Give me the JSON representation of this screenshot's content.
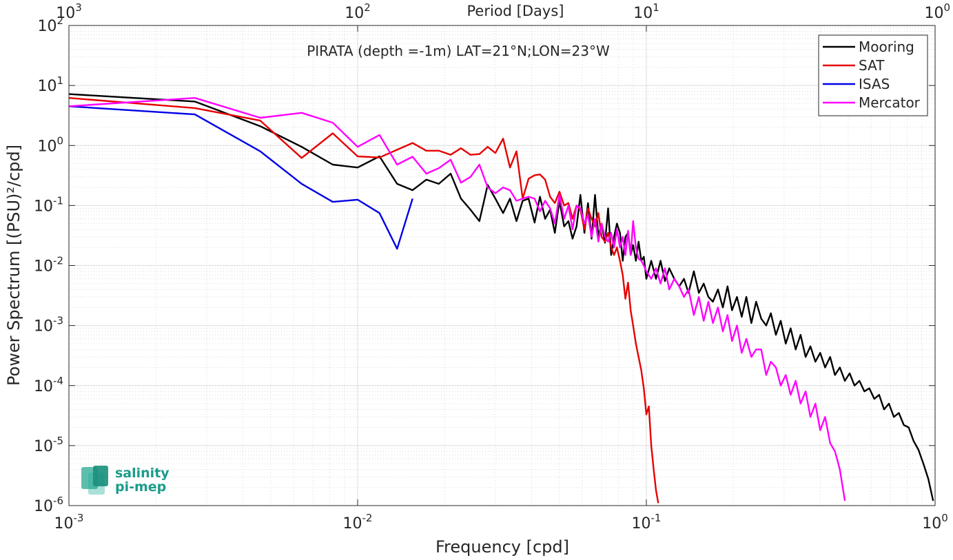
{
  "chart_data": {
    "type": "line",
    "title": "PIRATA (depth =-1m) LAT=21°N;LON=23°W",
    "xlabel": "Frequency [cpd]",
    "ylabel": "Power Spectrum [(PSU)²/cpd]",
    "top_axis_label": "Period [Days]",
    "x_scale": "log",
    "y_scale": "log",
    "xlim": [
      0.001,
      1
    ],
    "ylim": [
      1e-06,
      100
    ],
    "grid": true,
    "legend_position": "top-right",
    "x_ticks": [
      {
        "value": 0.001,
        "base": "10",
        "exp": "-3"
      },
      {
        "value": 0.01,
        "base": "10",
        "exp": "-2"
      },
      {
        "value": 0.1,
        "base": "10",
        "exp": "-1"
      },
      {
        "value": 1,
        "base": "10",
        "exp": "0"
      }
    ],
    "top_ticks": [
      {
        "value": 0.001,
        "base": "10",
        "exp": "3"
      },
      {
        "value": 0.01,
        "base": "10",
        "exp": "2"
      },
      {
        "value": 0.1,
        "base": "10",
        "exp": "1"
      },
      {
        "value": 1,
        "base": "10",
        "exp": "0"
      }
    ],
    "y_ticks": [
      {
        "value": 1e-06,
        "base": "10",
        "exp": "-6"
      },
      {
        "value": 1e-05,
        "base": "10",
        "exp": "-5"
      },
      {
        "value": 0.0001,
        "base": "10",
        "exp": "-4"
      },
      {
        "value": 0.001,
        "base": "10",
        "exp": "-3"
      },
      {
        "value": 0.01,
        "base": "10",
        "exp": "-2"
      },
      {
        "value": 0.1,
        "base": "10",
        "exp": "-1"
      },
      {
        "value": 1,
        "base": "10",
        "exp": "0"
      },
      {
        "value": 10,
        "base": "10",
        "exp": "1"
      },
      {
        "value": 100,
        "base": "10",
        "exp": "2"
      }
    ],
    "series": [
      {
        "name": "Mooring",
        "color": "#000000",
        "x": [
          0.001,
          0.00273,
          0.0046,
          0.0064,
          0.0082,
          0.01,
          0.0119,
          0.0137,
          0.0155,
          0.0173,
          0.0191,
          0.021,
          0.0228,
          0.0246,
          0.0264,
          0.0282,
          0.03,
          0.0319,
          0.0337,
          0.0355,
          0.0373,
          0.0391,
          0.041,
          0.0428,
          0.0446,
          0.0464,
          0.0482,
          0.05,
          0.0519,
          0.0537,
          0.0555,
          0.0573,
          0.0591,
          0.061,
          0.0628,
          0.0646,
          0.0664,
          0.0682,
          0.07,
          0.0719,
          0.0737,
          0.0755,
          0.0773,
          0.0791,
          0.081,
          0.0828,
          0.0846,
          0.0864,
          0.0882,
          0.09,
          0.092,
          0.094,
          0.096,
          0.098,
          0.1,
          0.104,
          0.108,
          0.112,
          0.116,
          0.12,
          0.125,
          0.13,
          0.135,
          0.14,
          0.146,
          0.152,
          0.158,
          0.164,
          0.17,
          0.177,
          0.184,
          0.191,
          0.198,
          0.206,
          0.214,
          0.222,
          0.231,
          0.24,
          0.25,
          0.26,
          0.27,
          0.281,
          0.292,
          0.304,
          0.316,
          0.329,
          0.342,
          0.356,
          0.37,
          0.385,
          0.4,
          0.416,
          0.433,
          0.45,
          0.468,
          0.487,
          0.506,
          0.526,
          0.547,
          0.569,
          0.592,
          0.616,
          0.64,
          0.666,
          0.692,
          0.72,
          0.749,
          0.779,
          0.81,
          0.842,
          0.876,
          0.911,
          0.947,
          0.985
        ],
        "y": [
          7.2,
          5.4,
          2.1,
          0.95,
          0.48,
          0.43,
          0.66,
          0.23,
          0.18,
          0.27,
          0.23,
          0.34,
          0.13,
          0.085,
          0.055,
          0.22,
          0.13,
          0.075,
          0.13,
          0.055,
          0.12,
          0.13,
          0.052,
          0.14,
          0.06,
          0.085,
          0.035,
          0.12,
          0.045,
          0.055,
          0.028,
          0.045,
          0.15,
          0.035,
          0.11,
          0.028,
          0.15,
          0.03,
          0.05,
          0.024,
          0.09,
          0.015,
          0.03,
          0.05,
          0.035,
          0.012,
          0.03,
          0.035,
          0.015,
          0.022,
          0.012,
          0.025,
          0.012,
          0.014,
          0.006,
          0.012,
          0.006,
          0.012,
          0.0055,
          0.009,
          0.006,
          0.0045,
          0.006,
          0.0035,
          0.008,
          0.0035,
          0.005,
          0.003,
          0.0025,
          0.004,
          0.002,
          0.0045,
          0.0018,
          0.003,
          0.0014,
          0.003,
          0.0011,
          0.0025,
          0.0013,
          0.001,
          0.0016,
          0.0007,
          0.0012,
          0.0005,
          0.0009,
          0.0004,
          0.0007,
          0.0003,
          0.00045,
          0.00025,
          0.00035,
          0.0002,
          0.0003,
          0.00015,
          0.0002,
          0.00012,
          0.00016,
          0.0001,
          0.00012,
          8e-05,
          9e-05,
          6e-05,
          7e-05,
          4e-05,
          5e-05,
          3e-05,
          3.5e-05,
          2.2e-05,
          2e-05,
          1.2e-05,
          8.5e-06,
          5e-06,
          2.8e-06,
          1.2e-06
        ]
      },
      {
        "name": "SAT",
        "color": "#e60000",
        "x": [
          0.001,
          0.00273,
          0.0046,
          0.0064,
          0.0082,
          0.01,
          0.0119,
          0.0137,
          0.0155,
          0.0173,
          0.0191,
          0.021,
          0.0228,
          0.0246,
          0.0264,
          0.0282,
          0.03,
          0.0319,
          0.0337,
          0.0355,
          0.0373,
          0.0391,
          0.041,
          0.0428,
          0.0446,
          0.0464,
          0.0482,
          0.05,
          0.0519,
          0.0537,
          0.0555,
          0.0573,
          0.0591,
          0.061,
          0.0628,
          0.0646,
          0.0664,
          0.0682,
          0.07,
          0.0719,
          0.0737,
          0.0755,
          0.0773,
          0.0791,
          0.081,
          0.0828,
          0.0846,
          0.0864,
          0.0882,
          0.09,
          0.092,
          0.094,
          0.096,
          0.098,
          0.1,
          0.102,
          0.104,
          0.106,
          0.108,
          0.11
        ],
        "y": [
          6.2,
          4.2,
          2.6,
          0.62,
          1.6,
          0.66,
          0.63,
          0.85,
          1.1,
          0.82,
          0.82,
          0.7,
          0.9,
          0.7,
          0.72,
          0.95,
          0.75,
          1.3,
          0.43,
          0.8,
          0.13,
          0.28,
          0.32,
          0.33,
          0.27,
          0.14,
          0.11,
          0.17,
          0.1,
          0.11,
          0.06,
          0.1,
          0.085,
          0.04,
          0.09,
          0.06,
          0.045,
          0.075,
          0.03,
          0.025,
          0.035,
          0.02,
          0.015,
          0.02,
          0.012,
          0.007,
          0.0028,
          0.0052,
          0.0018,
          0.001,
          0.0005,
          0.0003,
          0.00018,
          9e-05,
          3.3e-05,
          4.5e-05,
          1e-05,
          4e-06,
          1.8e-06,
          1.1e-06
        ]
      },
      {
        "name": "ISAS",
        "color": "#0000e6",
        "x": [
          0.001,
          0.00273,
          0.0046,
          0.0064,
          0.0082,
          0.01,
          0.0119,
          0.0137,
          0.0155
        ],
        "y": [
          4.5,
          3.3,
          0.8,
          0.23,
          0.115,
          0.125,
          0.075,
          0.019,
          0.13
        ]
      },
      {
        "name": "Mercator",
        "color": "#ff00ff",
        "x": [
          0.001,
          0.00273,
          0.0046,
          0.0064,
          0.0082,
          0.01,
          0.0119,
          0.0137,
          0.0155,
          0.0173,
          0.0191,
          0.021,
          0.0228,
          0.0246,
          0.0264,
          0.0282,
          0.03,
          0.0319,
          0.0337,
          0.0355,
          0.0373,
          0.0391,
          0.041,
          0.0428,
          0.0446,
          0.0464,
          0.0482,
          0.05,
          0.0519,
          0.0537,
          0.0555,
          0.0573,
          0.0591,
          0.061,
          0.0628,
          0.0646,
          0.0664,
          0.0682,
          0.07,
          0.0719,
          0.0737,
          0.0755,
          0.0773,
          0.0791,
          0.081,
          0.0828,
          0.0846,
          0.0864,
          0.0882,
          0.09,
          0.092,
          0.094,
          0.096,
          0.098,
          0.1,
          0.104,
          0.108,
          0.112,
          0.116,
          0.12,
          0.125,
          0.13,
          0.135,
          0.14,
          0.146,
          0.152,
          0.158,
          0.164,
          0.17,
          0.177,
          0.184,
          0.191,
          0.198,
          0.206,
          0.214,
          0.222,
          0.231,
          0.24,
          0.25,
          0.26,
          0.27,
          0.281,
          0.292,
          0.304,
          0.316,
          0.329,
          0.342,
          0.356,
          0.37,
          0.385,
          0.4,
          0.416,
          0.433,
          0.45,
          0.468,
          0.487
        ],
        "y": [
          4.5,
          6.2,
          2.9,
          3.5,
          2.4,
          0.95,
          1.5,
          0.48,
          0.65,
          0.34,
          0.42,
          0.58,
          0.24,
          0.3,
          0.48,
          0.2,
          0.16,
          0.2,
          0.18,
          0.12,
          0.13,
          0.14,
          0.13,
          0.08,
          0.12,
          0.09,
          0.05,
          0.15,
          0.06,
          0.1,
          0.04,
          0.1,
          0.09,
          0.05,
          0.07,
          0.03,
          0.06,
          0.025,
          0.05,
          0.03,
          0.025,
          0.035,
          0.02,
          0.04,
          0.02,
          0.03,
          0.015,
          0.038,
          0.015,
          0.055,
          0.02,
          0.013,
          0.012,
          0.01,
          0.008,
          0.006,
          0.009,
          0.005,
          0.009,
          0.004,
          0.006,
          0.0045,
          0.003,
          0.004,
          0.0015,
          0.003,
          0.0012,
          0.0025,
          0.0011,
          0.002,
          0.0008,
          0.0015,
          0.00055,
          0.001,
          0.00035,
          0.0006,
          0.0003,
          0.0004,
          0.0004,
          0.00015,
          0.00025,
          0.0002,
          0.0001,
          0.00015,
          7e-05,
          0.00012,
          5e-05,
          8e-05,
          3e-05,
          5e-05,
          1.8e-05,
          3e-05,
          1.1e-05,
          8e-06,
          4e-06,
          1.2e-06
        ]
      }
    ]
  },
  "logo": {
    "line1": "salinity",
    "line2": "pi-mep",
    "color": "#1a9c8a"
  }
}
